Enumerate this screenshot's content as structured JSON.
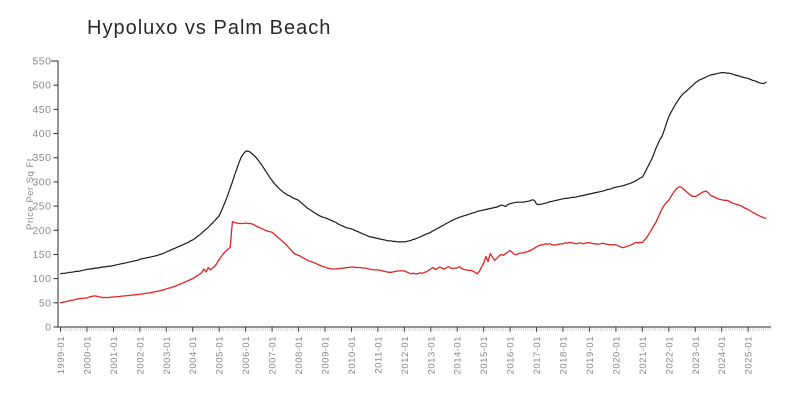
{
  "title": "Hypoluxo vs Palm Beach",
  "chart_data": {
    "type": "line",
    "title": "Hypoluxo vs Palm Beach",
    "xlabel": "",
    "ylabel": "Price Per Sq Ft",
    "ylim": [
      0,
      550
    ],
    "ytick_interval": 50,
    "yticks": [
      0,
      50,
      100,
      150,
      200,
      250,
      300,
      350,
      400,
      450,
      500,
      550
    ],
    "grid": false,
    "legend_position": "none",
    "x_frequency": "monthly",
    "x_start": "1999-01",
    "x_end": "2025-09",
    "x_tick_labels": [
      "1999-01",
      "2000-01",
      "2001-01",
      "2002-01",
      "2003-01",
      "2004-01",
      "2005-01",
      "2006-01",
      "2007-01",
      "2008-01",
      "2009-01",
      "2010-01",
      "2011-01",
      "2012-01",
      "2013-01",
      "2014-01",
      "2015-01",
      "2016-01",
      "2017-01",
      "2018-01",
      "2019-01",
      "2020-01",
      "2021-01",
      "2022-01",
      "2023-01",
      "2024-01",
      "2025-01"
    ],
    "series": [
      {
        "name": "Palm Beach",
        "color": "#1c1c1c",
        "stroke_width": 1.2,
        "values": [
          110,
          111,
          111,
          112,
          113,
          113,
          114,
          115,
          115,
          116,
          117,
          118,
          119,
          120,
          120,
          121,
          122,
          122,
          123,
          124,
          124,
          125,
          126,
          126,
          127,
          128,
          129,
          130,
          131,
          132,
          133,
          134,
          135,
          136,
          137,
          138,
          140,
          141,
          142,
          143,
          144,
          145,
          146,
          147,
          148,
          150,
          151,
          153,
          155,
          157,
          159,
          161,
          163,
          165,
          167,
          169,
          171,
          173,
          175,
          178,
          180,
          183,
          187,
          190,
          194,
          198,
          202,
          206,
          211,
          215,
          220,
          225,
          230,
          240,
          251,
          262,
          274,
          287,
          300,
          314,
          327,
          340,
          351,
          358,
          363,
          364,
          362,
          358,
          354,
          349,
          343,
          337,
          330,
          323,
          316,
          309,
          303,
          297,
          292,
          287,
          283,
          279,
          276,
          273,
          271,
          268,
          266,
          264,
          262,
          258,
          254,
          250,
          246,
          243,
          240,
          237,
          234,
          231,
          229,
          227,
          226,
          224,
          222,
          220,
          218,
          216,
          213,
          211,
          209,
          207,
          205,
          204,
          203,
          201,
          199,
          197,
          195,
          193,
          191,
          189,
          187,
          186,
          185,
          184,
          183,
          182,
          181,
          180,
          179,
          178,
          178,
          177,
          177,
          176,
          176,
          176,
          176,
          177,
          178,
          179,
          181,
          182,
          184,
          186,
          188,
          190,
          192,
          194,
          196,
          199,
          201,
          204,
          206,
          209,
          211,
          214,
          216,
          219,
          221,
          223,
          225,
          227,
          228,
          230,
          231,
          233,
          234,
          236,
          237,
          239,
          240,
          241,
          242,
          243,
          244,
          245,
          246,
          247,
          248,
          250,
          252,
          251,
          249,
          253,
          255,
          256,
          257,
          258,
          258,
          258,
          258,
          259,
          260,
          261,
          263,
          262,
          254,
          253,
          254,
          255,
          256,
          257,
          259,
          260,
          261,
          262,
          263,
          264,
          265,
          266,
          266,
          267,
          268,
          268,
          269,
          270,
          271,
          272,
          273,
          274,
          275,
          276,
          277,
          278,
          279,
          280,
          281,
          282,
          284,
          285,
          286,
          288,
          289,
          290,
          291,
          292,
          293,
          295,
          296,
          298,
          300,
          302,
          305,
          308,
          310,
          318,
          327,
          336,
          345,
          355,
          368,
          378,
          388,
          395,
          408,
          422,
          435,
          444,
          452,
          460,
          467,
          474,
          480,
          484,
          488,
          492,
          496,
          500,
          505,
          508,
          511,
          513,
          515,
          517,
          519,
          521,
          522,
          523,
          524,
          525,
          526,
          526,
          525,
          525,
          524,
          523,
          521,
          520,
          519,
          517,
          516,
          515,
          514,
          512,
          510,
          509,
          507,
          505,
          504,
          503,
          506
        ]
      },
      {
        "name": "Hypoluxo",
        "color": "#e02424",
        "stroke_width": 1.3,
        "values": [
          50,
          51,
          52,
          53,
          54,
          55,
          56,
          57,
          58,
          59,
          59,
          60,
          60,
          62,
          63,
          64,
          64,
          63,
          62,
          61,
          61,
          61,
          61,
          62,
          62,
          62,
          63,
          63,
          64,
          64,
          65,
          65,
          66,
          66,
          67,
          67,
          68,
          68,
          69,
          70,
          70,
          71,
          72,
          73,
          74,
          75,
          76,
          77,
          79,
          80,
          81,
          83,
          84,
          86,
          88,
          90,
          92,
          94,
          96,
          98,
          100,
          103,
          106,
          109,
          112,
          120,
          114,
          123,
          118,
          122,
          126,
          132,
          140,
          146,
          152,
          157,
          161,
          165,
          218,
          216,
          215,
          214,
          214,
          214,
          215,
          214,
          214,
          213,
          211,
          208,
          206,
          204,
          202,
          200,
          198,
          197,
          196,
          192,
          188,
          184,
          180,
          176,
          172,
          167,
          162,
          157,
          152,
          150,
          148,
          146,
          143,
          141,
          138,
          136,
          135,
          133,
          131,
          129,
          127,
          125,
          124,
          122,
          121,
          120,
          120,
          120,
          121,
          121,
          122,
          122,
          123,
          123,
          124,
          124,
          123,
          123,
          123,
          122,
          122,
          121,
          120,
          119,
          118,
          118,
          118,
          117,
          116,
          115,
          114,
          113,
          113,
          114,
          115,
          116,
          116,
          116,
          116,
          114,
          112,
          110,
          111,
          110,
          110,
          112,
          111,
          113,
          114,
          117,
          120,
          123,
          119,
          121,
          124,
          122,
          120,
          122,
          125,
          122,
          121,
          122,
          122,
          125,
          121,
          119,
          118,
          117,
          117,
          116,
          113,
          110,
          115,
          124,
          132,
          146,
          135,
          152,
          144,
          138,
          142,
          147,
          150,
          148,
          152,
          155,
          158,
          154,
          150,
          150,
          152,
          153,
          153,
          155,
          156,
          158,
          160,
          163,
          166,
          168,
          170,
          170,
          172,
          171,
          172,
          170,
          169,
          170,
          171,
          172,
          172,
          174,
          173,
          175,
          174,
          173,
          172,
          173,
          174,
          172,
          173,
          174,
          174,
          173,
          172,
          172,
          171,
          172,
          173,
          172,
          171,
          170,
          170,
          170,
          170,
          168,
          166,
          164,
          165,
          167,
          168,
          170,
          172,
          175,
          174,
          175,
          175,
          180,
          185,
          193,
          200,
          208,
          215,
          225,
          235,
          245,
          252,
          258,
          262,
          270,
          277,
          283,
          288,
          290,
          288,
          284,
          280,
          276,
          272,
          270,
          270,
          272,
          275,
          278,
          280,
          281,
          277,
          272,
          270,
          268,
          266,
          264,
          263,
          262,
          262,
          261,
          258,
          256,
          255,
          253,
          252,
          250,
          247,
          245,
          243,
          240,
          237,
          235,
          232,
          230,
          228,
          226,
          225
        ]
      }
    ]
  }
}
